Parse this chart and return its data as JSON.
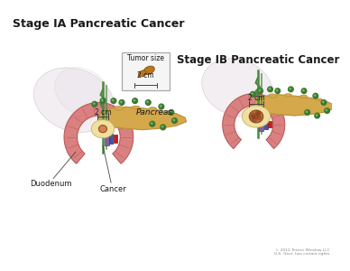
{
  "title_left": "Stage IA Pancreatic Cancer",
  "title_right": "Stage IB Pancreatic Cancer",
  "label_pancreas": "Pancreas",
  "label_duodenum": "Duodenum",
  "label_cancer": "Cancer",
  "label_2cm_left": "2 cm",
  "label_2cm_right": "2 cm",
  "inset_title": "Tumor size",
  "inset_label": "2 cm",
  "copyright": "© 2012 Terese Winslow LLC\nU.S. Govt. has certain rights",
  "bg_color": "#ffffff",
  "pancreas_color": "#d4a84b",
  "pancreas_edge": "#b8903a",
  "duodenum_outer": "#d98080",
  "duodenum_inner": "#c06060",
  "duodenum_fold": "#b85050",
  "stomach_color": "#f0d8d8",
  "stomach_edge": "#d8b0b0",
  "cancer_sm_color": "#d4844a",
  "cancer_lg_color": "#c87040",
  "cancer_bg": "#f0e0a0",
  "cancer_bg_edge": "#c8b060",
  "tumor_box_bg": "#f5f5f5",
  "tumor_box_edge": "#aaaaaa",
  "peanut_color": "#b87820",
  "peanut_edge": "#8a5a10",
  "vessel_green": "#4a8840",
  "vessel_blue": "#4455a0",
  "vessel_red": "#c02020",
  "vessel_purple": "#8060a0",
  "node_green": "#3a7830",
  "text_dark": "#1a1a1a",
  "text_label": "#222222",
  "line_color": "#444444",
  "bg_blob_color": "#ece0e8",
  "bg_blob_edge": "#d0b8c8"
}
